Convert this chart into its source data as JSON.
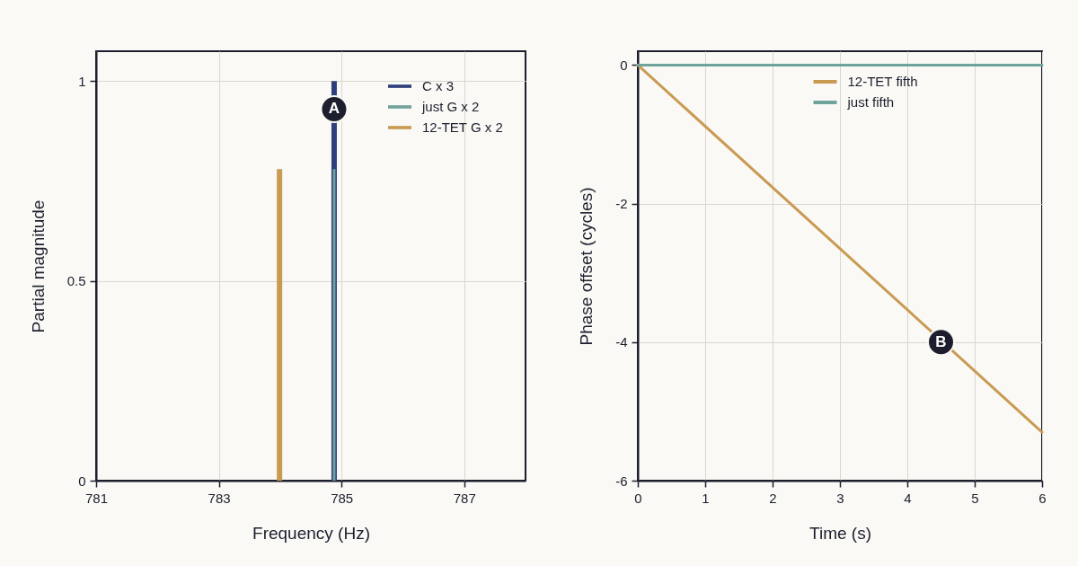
{
  "chart_data": [
    {
      "type": "bar",
      "xlabel": "Frequency (Hz)",
      "ylabel": "Partial magnitude",
      "series": [
        {
          "name": "C x 3",
          "color": "#2e3f7b",
          "x": [
            784.88
          ],
          "values": [
            1
          ]
        },
        {
          "name": "just G x 2",
          "color": "#6fa39c",
          "x": [
            784.88
          ],
          "values": [
            0.78
          ]
        },
        {
          "name": "12-TET G x 2",
          "color": "#c99a52",
          "x": [
            783.99
          ],
          "values": [
            0.78
          ]
        }
      ],
      "xlim": [
        781,
        788
      ],
      "xticks": [
        781,
        783,
        785,
        787
      ],
      "ylim": [
        0,
        1.075
      ],
      "yticks": [
        0,
        0.5,
        1
      ],
      "grid": true,
      "legend": "top right",
      "annotations": [
        {
          "text": "A",
          "x": 784.88,
          "y": 0.93
        }
      ]
    },
    {
      "type": "line",
      "xlabel": "Time (s)",
      "ylabel": "Phase offset (cycles)",
      "series": [
        {
          "name": "12-TET fifth",
          "color": "#c99a52",
          "x": [
            0,
            6
          ],
          "values": [
            0,
            -5.3
          ]
        },
        {
          "name": "just fifth",
          "color": "#6fa39c",
          "x": [
            0,
            6
          ],
          "values": [
            0,
            0
          ]
        }
      ],
      "xlim": [
        0,
        6
      ],
      "xticks": [
        0,
        1,
        2,
        3,
        4,
        5,
        6
      ],
      "ylim": [
        -6,
        0.2
      ],
      "yticks": [
        -6,
        -4,
        -2,
        0
      ],
      "grid": true,
      "legend": "top",
      "marker": "none",
      "line_style": "solid",
      "annotations": [
        {
          "text": "B",
          "x": 4.5,
          "y": -4
        }
      ]
    }
  ]
}
